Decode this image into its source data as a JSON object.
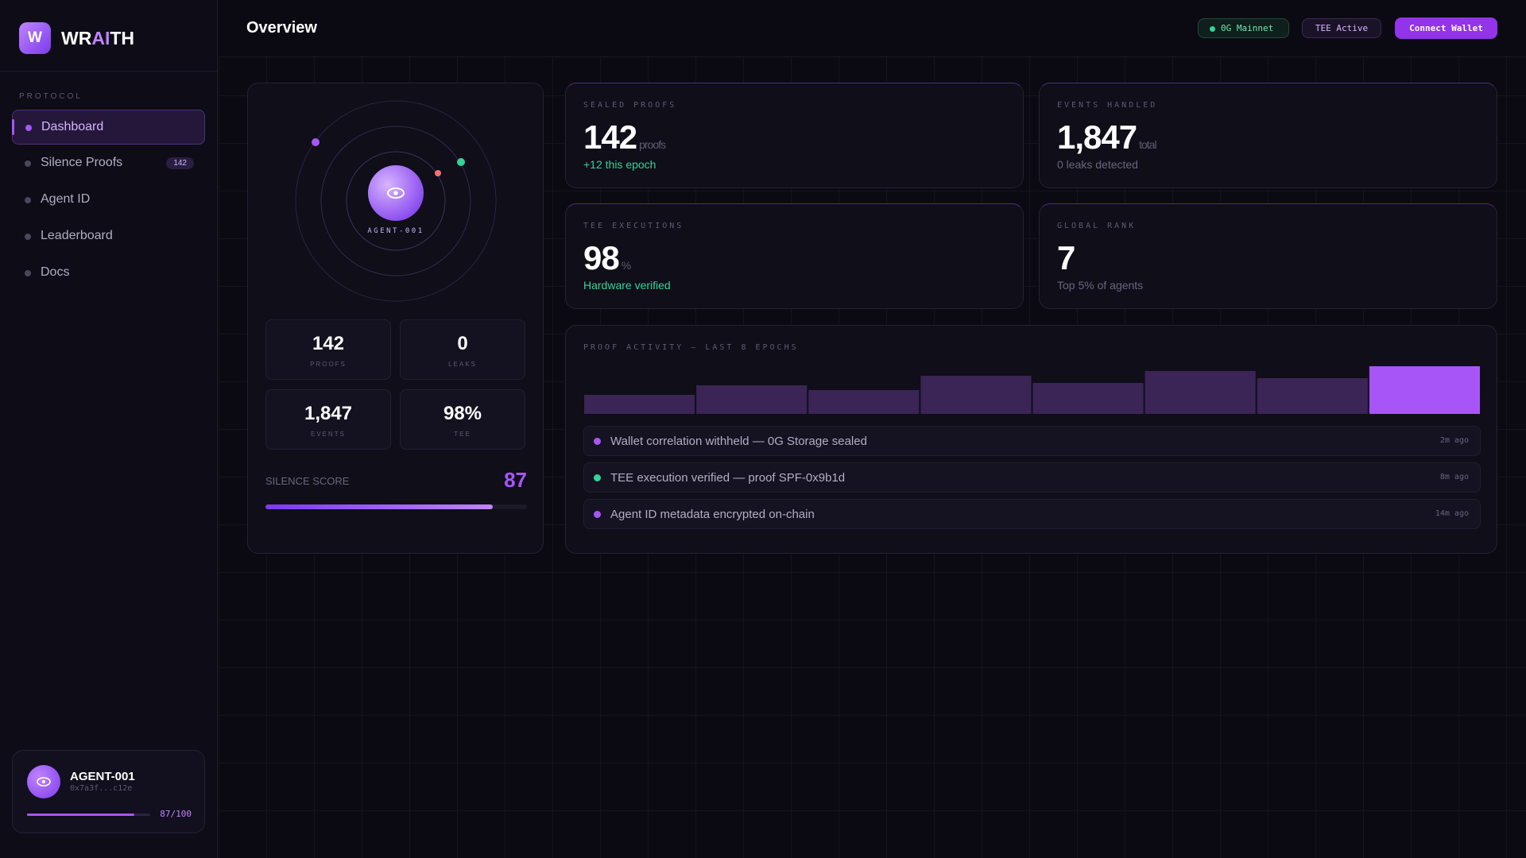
{
  "sidebar": {
    "brand": {
      "logo": "W",
      "name_pre": "WR",
      "name_accent": "AI",
      "name_post": "TH"
    },
    "section": "PROTOCOL",
    "nav": [
      {
        "label": "Dashboard",
        "active": true
      },
      {
        "label": "Silence Proofs",
        "badge": 142
      },
      {
        "label": "Agent ID"
      },
      {
        "label": "Leaderboard"
      },
      {
        "label": "Docs"
      }
    ],
    "agent": {
      "name": "AGENT-001",
      "address": "0x7a3f...c12e",
      "score": 87,
      "score_label": "87/100"
    }
  },
  "header": {
    "title": "Overview",
    "network": "0G Mainnet",
    "status": "TEE Active",
    "button": "Connect Wallet"
  },
  "agent_panel": {
    "core_label": "AGENT-001",
    "stats": [
      {
        "value": 142,
        "caption": "PROOFS"
      },
      {
        "value": 0,
        "caption": "LEAKS"
      },
      {
        "value": {
          "value": 1847,
          "label": "1,847"
        },
        "caption": "EVENTS"
      },
      {
        "value": {
          "value": 98,
          "label": "98%"
        },
        "caption": "TEE"
      }
    ],
    "score_label": "SILENCE SCORE",
    "score": 87
  },
  "cards": [
    {
      "label": "SEALED PROOFS",
      "value": 142,
      "unit": "proofs",
      "note": "+12 this epoch",
      "note_color": "#34d399"
    },
    {
      "label": "EVENTS HANDLED",
      "value": {
        "value": 1847,
        "label": "1,847"
      },
      "unit": "total",
      "note": "0 leaks detected",
      "note_color": "#6b6580"
    },
    {
      "label": "TEE EXECUTIONS",
      "value": 98,
      "unit": "%",
      "note": "Hardware verified",
      "note_color": "#34d399"
    },
    {
      "label": "GLOBAL RANK",
      "value": 7,
      "note": "Top 5% of agents",
      "note_color": "#6b6580"
    }
  ],
  "activity": {
    "title": "PROOF ACTIVITY — LAST 8 EPOCHS",
    "values": [
      40,
      60,
      50,
      80,
      65,
      90,
      75,
      100
    ],
    "color": "#3b2456",
    "highlight_color": "#a855f7",
    "events": [
      {
        "text": "Wallet correlation withheld — 0G Storage sealed",
        "time": "2m ago",
        "color": "#a855f7"
      },
      {
        "text": "TEE execution verified — proof SPF-0x9b1d",
        "time": "8m ago",
        "color": "#34d399"
      },
      {
        "text": "Agent ID metadata encrypted on-chain",
        "time": "14m ago",
        "color": "#a855f7"
      }
    ]
  }
}
